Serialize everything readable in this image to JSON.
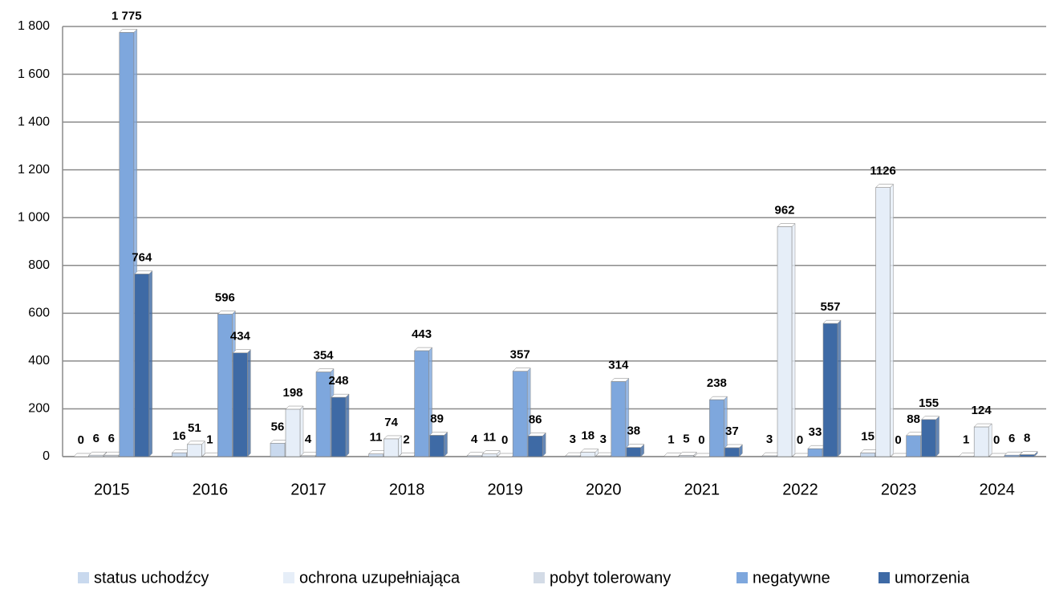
{
  "chart_data": {
    "type": "bar",
    "categories": [
      "2015",
      "2016",
      "2017",
      "2018",
      "2019",
      "2020",
      "2021",
      "2022",
      "2023",
      "2024"
    ],
    "series": [
      {
        "name": "status uchodźcy",
        "color": "#c9d9ee",
        "values": [
          0,
          16,
          56,
          11,
          4,
          3,
          1,
          3,
          15,
          1
        ]
      },
      {
        "name": "ochrona uzupełniająca",
        "color": "#e6eef8",
        "values": [
          6,
          51,
          198,
          74,
          11,
          18,
          5,
          962,
          1126,
          124
        ]
      },
      {
        "name": "pobyt tolerowany",
        "color": "#d3dbe6",
        "values": [
          6,
          1,
          4,
          2,
          0,
          3,
          0,
          0,
          0,
          0
        ]
      },
      {
        "name": "negatywne",
        "color": "#7ea7dd",
        "values": [
          1775,
          596,
          354,
          443,
          357,
          314,
          238,
          33,
          88,
          6
        ],
        "value_labels": [
          "1 775",
          "596",
          "354",
          "443",
          "357",
          "314",
          "238",
          "33",
          "88",
          "6"
        ]
      },
      {
        "name": "umorzenia",
        "color": "#3e6aa5",
        "values": [
          764,
          434,
          248,
          89,
          86,
          38,
          37,
          557,
          155,
          8
        ]
      }
    ],
    "value_labels_ochrona": null,
    "ylim": [
      0,
      1800
    ],
    "yticks": [
      0,
      200,
      400,
      600,
      800,
      {
        "value": 1000,
        "label": "1 000"
      },
      {
        "value": 1200,
        "label": "1 200"
      },
      {
        "value": 1400,
        "label": "1 400"
      },
      {
        "value": 1600,
        "label": "1 600"
      },
      {
        "value": 1800,
        "label": "1 800"
      }
    ],
    "grid": true,
    "legend": "bottom"
  }
}
